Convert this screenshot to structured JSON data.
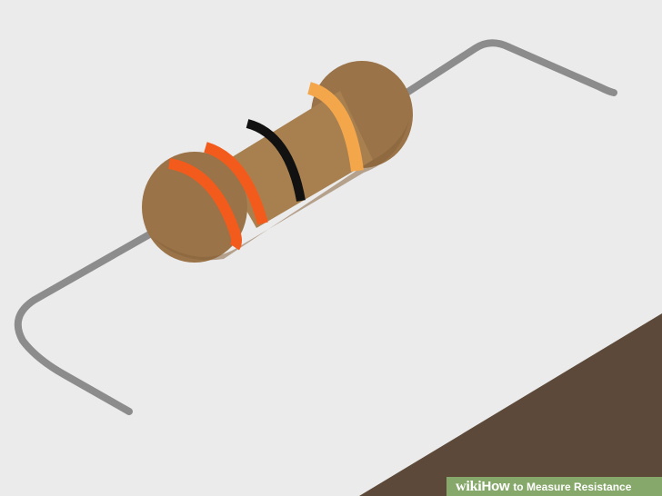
{
  "background_color": "#ebebeb",
  "surface_color": "#5c4939",
  "resistor": {
    "body_color": "#a88050",
    "cap_color": "#9a7348",
    "lead_color": "#8c8c8c",
    "bands": [
      {
        "name": "first-band",
        "color": "#f35b1c"
      },
      {
        "name": "second-band",
        "color": "#f35b1c"
      },
      {
        "name": "multiplier-band",
        "color": "#111111"
      },
      {
        "name": "tolerance-band",
        "color": "#f4a64b"
      }
    ]
  },
  "watermark": {
    "wiki": "wiki",
    "how": "How",
    "title": "to Measure Resistance",
    "banner_color": "#87a86b"
  }
}
